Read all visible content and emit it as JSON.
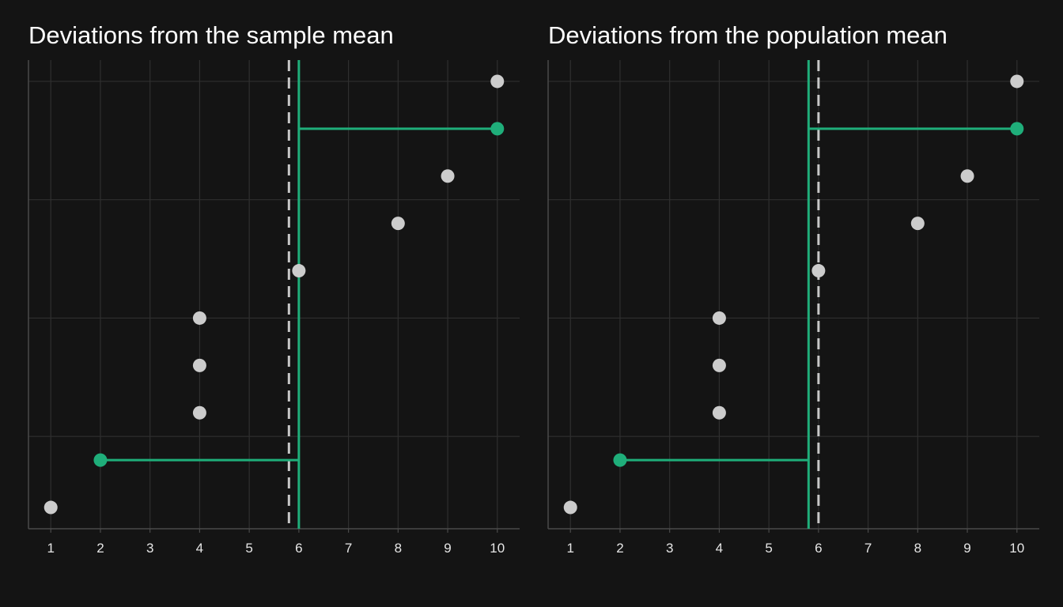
{
  "colors": {
    "background": "#141414",
    "grid": "#2f2f2f",
    "axis": "#4a4a4a",
    "point": "#cccccc",
    "highlight": "#1fae7a",
    "mean_dashed": "#c8c8c8"
  },
  "chart_data": [
    {
      "type": "scatter",
      "title": "Deviations from the sample mean",
      "xlabel": "",
      "ylabel": "",
      "x_ticks": [
        1,
        2,
        3,
        4,
        5,
        6,
        7,
        8,
        9,
        10
      ],
      "xlim": [
        0.55,
        10.45
      ],
      "ylim": [
        0.55,
        10.45
      ],
      "grid": true,
      "points": [
        {
          "x": 1,
          "y": 1
        },
        {
          "x": 2,
          "y": 2,
          "highlight": true
        },
        {
          "x": 4,
          "y": 3
        },
        {
          "x": 4,
          "y": 4
        },
        {
          "x": 4,
          "y": 5
        },
        {
          "x": 6,
          "y": 6
        },
        {
          "x": 8,
          "y": 7
        },
        {
          "x": 9,
          "y": 8
        },
        {
          "x": 10,
          "y": 9,
          "highlight": true
        },
        {
          "x": 10,
          "y": 10
        }
      ],
      "solid_line_x": 6,
      "dashed_line_x": 5.8
    },
    {
      "type": "scatter",
      "title": "Deviations from the population mean",
      "xlabel": "",
      "ylabel": "",
      "x_ticks": [
        1,
        2,
        3,
        4,
        5,
        6,
        7,
        8,
        9,
        10
      ],
      "xlim": [
        0.55,
        10.45
      ],
      "ylim": [
        0.55,
        10.45
      ],
      "grid": true,
      "points": [
        {
          "x": 1,
          "y": 1
        },
        {
          "x": 2,
          "y": 2,
          "highlight": true
        },
        {
          "x": 4,
          "y": 3
        },
        {
          "x": 4,
          "y": 4
        },
        {
          "x": 4,
          "y": 5
        },
        {
          "x": 6,
          "y": 6
        },
        {
          "x": 8,
          "y": 7
        },
        {
          "x": 9,
          "y": 8
        },
        {
          "x": 10,
          "y": 9,
          "highlight": true
        },
        {
          "x": 10,
          "y": 10
        }
      ],
      "solid_line_x": 5.8,
      "dashed_line_x": 6
    }
  ]
}
